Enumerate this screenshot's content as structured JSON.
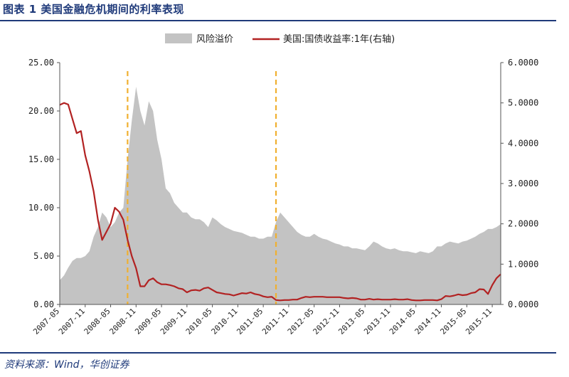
{
  "figure": {
    "title": "图表 1   美国金融危机期间的利率表现",
    "source": "资料来源：Wind，华创证券"
  },
  "colors": {
    "spread_fill": "#c3c3c3",
    "yield_line": "#b22222",
    "event_line": "#f0b030",
    "header_blue": "#1f3a7a"
  },
  "chart_data": {
    "type": "area",
    "x": [
      "2007-05",
      "2007-11",
      "2008-05",
      "2008-11",
      "2009-05",
      "2009-11",
      "2010-05",
      "2010-11",
      "2011-05",
      "2011-11",
      "2012-05",
      "2012-11",
      "2013-05",
      "2013-11",
      "2014-05",
      "2014-11",
      "2015-05",
      "2015-11"
    ],
    "x_tick_labels": [
      "2007-05",
      "2007-11",
      "2008-05",
      "2008-11",
      "2009-05",
      "2009-11",
      "2010-05",
      "2010-11",
      "2011-05",
      "2011-11",
      "2012-05",
      "2012-11",
      "2013-05",
      "2013-11",
      "2014-05",
      "2014-11",
      "2015-05",
      "2015-11"
    ],
    "y_left_ticks": [
      "0.00",
      "5.00",
      "10.00",
      "15.00",
      "20.00",
      "25.00"
    ],
    "y_right_ticks": [
      "0.0000",
      "1.0000",
      "2.0000",
      "3.0000",
      "4.0000",
      "5.0000",
      "6.0000"
    ],
    "ylim_left": [
      0,
      25
    ],
    "ylim_right": [
      0,
      6
    ],
    "legend": [
      "风险溢价",
      "美国:国债收益率:1年(右轴)"
    ],
    "legend_position": "top-center",
    "grid": false,
    "event_lines": [
      "2008-09",
      "2011-08"
    ],
    "series": [
      {
        "name": "风险溢价",
        "axis": "left",
        "kind": "area",
        "points": [
          [
            "2007-05",
            2.5
          ],
          [
            "2007-06",
            3.0
          ],
          [
            "2007-07",
            3.8
          ],
          [
            "2007-08",
            4.5
          ],
          [
            "2007-09",
            4.8
          ],
          [
            "2007-10",
            4.8
          ],
          [
            "2007-11",
            5.0
          ],
          [
            "2007-12",
            5.5
          ],
          [
            "2008-01",
            7.0
          ],
          [
            "2008-02",
            8.0
          ],
          [
            "2008-03",
            9.5
          ],
          [
            "2008-04",
            9.0
          ],
          [
            "2008-05",
            8.0
          ],
          [
            "2008-06",
            8.5
          ],
          [
            "2008-07",
            9.5
          ],
          [
            "2008-08",
            10.0
          ],
          [
            "2008-09",
            15.0
          ],
          [
            "2008-10",
            19.0
          ],
          [
            "2008-11",
            22.5
          ],
          [
            "2008-12",
            20.0
          ],
          [
            "2009-01",
            18.5
          ],
          [
            "2009-02",
            21.0
          ],
          [
            "2009-03",
            20.0
          ],
          [
            "2009-04",
            17.0
          ],
          [
            "2009-05",
            15.0
          ],
          [
            "2009-06",
            12.0
          ],
          [
            "2009-07",
            11.5
          ],
          [
            "2009-08",
            10.5
          ],
          [
            "2009-09",
            10.0
          ],
          [
            "2009-10",
            9.5
          ],
          [
            "2009-11",
            9.5
          ],
          [
            "2009-12",
            9.0
          ],
          [
            "2010-01",
            8.8
          ],
          [
            "2010-02",
            8.8
          ],
          [
            "2010-03",
            8.5
          ],
          [
            "2010-04",
            8.0
          ],
          [
            "2010-05",
            9.0
          ],
          [
            "2010-06",
            8.7
          ],
          [
            "2010-07",
            8.3
          ],
          [
            "2010-08",
            8.0
          ],
          [
            "2010-09",
            7.8
          ],
          [
            "2010-10",
            7.6
          ],
          [
            "2010-11",
            7.5
          ],
          [
            "2010-12",
            7.4
          ],
          [
            "2011-01",
            7.2
          ],
          [
            "2011-02",
            7.0
          ],
          [
            "2011-03",
            7.0
          ],
          [
            "2011-04",
            6.8
          ],
          [
            "2011-05",
            6.8
          ],
          [
            "2011-06",
            7.0
          ],
          [
            "2011-07",
            7.0
          ],
          [
            "2011-08",
            8.5
          ],
          [
            "2011-09",
            9.5
          ],
          [
            "2011-10",
            9.0
          ],
          [
            "2011-11",
            8.5
          ],
          [
            "2011-12",
            8.0
          ],
          [
            "2012-01",
            7.5
          ],
          [
            "2012-02",
            7.2
          ],
          [
            "2012-03",
            7.0
          ],
          [
            "2012-04",
            7.0
          ],
          [
            "2012-05",
            7.3
          ],
          [
            "2012-06",
            7.0
          ],
          [
            "2012-07",
            6.8
          ],
          [
            "2012-08",
            6.7
          ],
          [
            "2012-09",
            6.5
          ],
          [
            "2012-10",
            6.3
          ],
          [
            "2012-11",
            6.2
          ],
          [
            "2012-12",
            6.0
          ],
          [
            "2013-01",
            6.0
          ],
          [
            "2013-02",
            5.8
          ],
          [
            "2013-03",
            5.8
          ],
          [
            "2013-04",
            5.7
          ],
          [
            "2013-05",
            5.6
          ],
          [
            "2013-06",
            6.0
          ],
          [
            "2013-07",
            6.5
          ],
          [
            "2013-08",
            6.3
          ],
          [
            "2013-09",
            6.0
          ],
          [
            "2013-10",
            5.8
          ],
          [
            "2013-11",
            5.7
          ],
          [
            "2013-12",
            5.8
          ],
          [
            "2014-01",
            5.6
          ],
          [
            "2014-02",
            5.5
          ],
          [
            "2014-03",
            5.5
          ],
          [
            "2014-04",
            5.4
          ],
          [
            "2014-05",
            5.3
          ],
          [
            "2014-06",
            5.5
          ],
          [
            "2014-07",
            5.4
          ],
          [
            "2014-08",
            5.3
          ],
          [
            "2014-09",
            5.5
          ],
          [
            "2014-10",
            6.0
          ],
          [
            "2014-11",
            6.0
          ],
          [
            "2014-12",
            6.3
          ],
          [
            "2015-01",
            6.5
          ],
          [
            "2015-02",
            6.4
          ],
          [
            "2015-03",
            6.3
          ],
          [
            "2015-04",
            6.5
          ],
          [
            "2015-05",
            6.6
          ],
          [
            "2015-06",
            6.8
          ],
          [
            "2015-07",
            7.0
          ],
          [
            "2015-08",
            7.3
          ],
          [
            "2015-09",
            7.5
          ],
          [
            "2015-10",
            7.8
          ],
          [
            "2015-11",
            7.8
          ],
          [
            "2015-12",
            8.0
          ],
          [
            "2016-01",
            8.3
          ]
        ]
      },
      {
        "name": "美国:国债收益率:1年(右轴)",
        "axis": "right",
        "kind": "line",
        "points": [
          [
            "2007-05",
            4.95
          ],
          [
            "2007-06",
            5.0
          ],
          [
            "2007-07",
            4.96
          ],
          [
            "2007-08",
            4.6
          ],
          [
            "2007-09",
            4.25
          ],
          [
            "2007-10",
            4.3
          ],
          [
            "2007-11",
            3.7
          ],
          [
            "2007-12",
            3.3
          ],
          [
            "2008-01",
            2.8
          ],
          [
            "2008-02",
            2.1
          ],
          [
            "2008-03",
            1.6
          ],
          [
            "2008-04",
            1.8
          ],
          [
            "2008-05",
            2.0
          ],
          [
            "2008-06",
            2.4
          ],
          [
            "2008-07",
            2.3
          ],
          [
            "2008-08",
            2.1
          ],
          [
            "2008-09",
            1.6
          ],
          [
            "2008-10",
            1.2
          ],
          [
            "2008-11",
            0.9
          ],
          [
            "2008-12",
            0.45
          ],
          [
            "2009-01",
            0.45
          ],
          [
            "2009-02",
            0.6
          ],
          [
            "2009-03",
            0.65
          ],
          [
            "2009-04",
            0.55
          ],
          [
            "2009-05",
            0.5
          ],
          [
            "2009-06",
            0.5
          ],
          [
            "2009-07",
            0.48
          ],
          [
            "2009-08",
            0.45
          ],
          [
            "2009-09",
            0.4
          ],
          [
            "2009-10",
            0.38
          ],
          [
            "2009-11",
            0.3
          ],
          [
            "2009-12",
            0.35
          ],
          [
            "2010-01",
            0.36
          ],
          [
            "2010-02",
            0.34
          ],
          [
            "2010-03",
            0.4
          ],
          [
            "2010-04",
            0.42
          ],
          [
            "2010-05",
            0.36
          ],
          [
            "2010-06",
            0.3
          ],
          [
            "2010-07",
            0.28
          ],
          [
            "2010-08",
            0.26
          ],
          [
            "2010-09",
            0.25
          ],
          [
            "2010-10",
            0.22
          ],
          [
            "2010-11",
            0.25
          ],
          [
            "2010-12",
            0.28
          ],
          [
            "2011-01",
            0.27
          ],
          [
            "2011-02",
            0.3
          ],
          [
            "2011-03",
            0.26
          ],
          [
            "2011-04",
            0.24
          ],
          [
            "2011-05",
            0.2
          ],
          [
            "2011-06",
            0.18
          ],
          [
            "2011-07",
            0.19
          ],
          [
            "2011-08",
            0.11
          ],
          [
            "2011-09",
            0.1
          ],
          [
            "2011-10",
            0.11
          ],
          [
            "2011-11",
            0.11
          ],
          [
            "2011-12",
            0.12
          ],
          [
            "2012-01",
            0.12
          ],
          [
            "2012-02",
            0.16
          ],
          [
            "2012-03",
            0.19
          ],
          [
            "2012-04",
            0.18
          ],
          [
            "2012-05",
            0.19
          ],
          [
            "2012-06",
            0.19
          ],
          [
            "2012-07",
            0.19
          ],
          [
            "2012-08",
            0.18
          ],
          [
            "2012-09",
            0.18
          ],
          [
            "2012-10",
            0.18
          ],
          [
            "2012-11",
            0.18
          ],
          [
            "2012-12",
            0.16
          ],
          [
            "2013-01",
            0.15
          ],
          [
            "2013-02",
            0.16
          ],
          [
            "2013-03",
            0.15
          ],
          [
            "2013-04",
            0.12
          ],
          [
            "2013-05",
            0.12
          ],
          [
            "2013-06",
            0.14
          ],
          [
            "2013-07",
            0.12
          ],
          [
            "2013-08",
            0.13
          ],
          [
            "2013-09",
            0.12
          ],
          [
            "2013-10",
            0.12
          ],
          [
            "2013-11",
            0.12
          ],
          [
            "2013-12",
            0.13
          ],
          [
            "2014-01",
            0.12
          ],
          [
            "2014-02",
            0.12
          ],
          [
            "2014-03",
            0.13
          ],
          [
            "2014-04",
            0.11
          ],
          [
            "2014-05",
            0.1
          ],
          [
            "2014-06",
            0.1
          ],
          [
            "2014-07",
            0.11
          ],
          [
            "2014-08",
            0.11
          ],
          [
            "2014-09",
            0.11
          ],
          [
            "2014-10",
            0.1
          ],
          [
            "2014-11",
            0.13
          ],
          [
            "2014-12",
            0.21
          ],
          [
            "2015-01",
            0.2
          ],
          [
            "2015-02",
            0.22
          ],
          [
            "2015-03",
            0.25
          ],
          [
            "2015-04",
            0.23
          ],
          [
            "2015-05",
            0.24
          ],
          [
            "2015-06",
            0.28
          ],
          [
            "2015-07",
            0.3
          ],
          [
            "2015-08",
            0.38
          ],
          [
            "2015-09",
            0.37
          ],
          [
            "2015-10",
            0.26
          ],
          [
            "2015-11",
            0.48
          ],
          [
            "2015-12",
            0.65
          ],
          [
            "2016-01",
            0.75
          ]
        ]
      }
    ]
  }
}
